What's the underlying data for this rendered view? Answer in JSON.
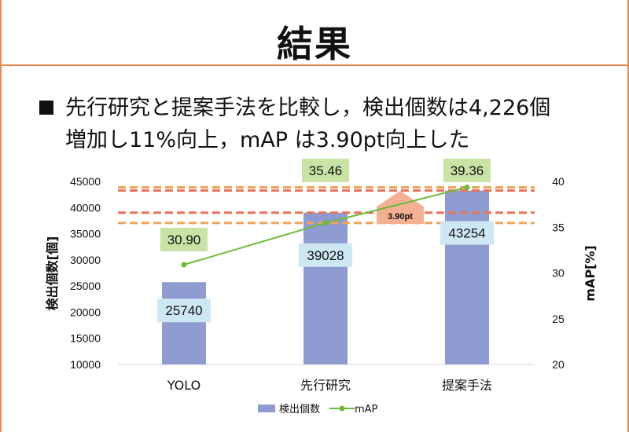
{
  "slide": {
    "title": "結果",
    "bullet_line1": "先行研究と提案手法を比較し，検出個数は4,226個",
    "bullet_line2": "増加し11%向上，mAP は3.90pt向上した"
  },
  "chart_data": {
    "type": "bar",
    "categories": [
      "YOLO",
      "先行研究",
      "提案手法"
    ],
    "series": [
      {
        "name": "検出個数",
        "kind": "bar",
        "axis": "left",
        "values": [
          25740,
          39028,
          43254
        ],
        "color": "#8e9bd0"
      },
      {
        "name": "mAP",
        "kind": "line",
        "axis": "right",
        "values": [
          30.9,
          35.46,
          39.36
        ],
        "color": "#6dbb3a"
      }
    ],
    "bar_labels": [
      "25740",
      "39028",
      "43254"
    ],
    "line_labels": [
      "30.90",
      "35.46",
      "39.36"
    ],
    "ylabel": "検出個数[個]",
    "ylabel_right": "mAP[%]",
    "ylim": [
      10000,
      45000
    ],
    "yticks": [
      "10000",
      "15000",
      "20000",
      "25000",
      "30000",
      "35000",
      "40000",
      "45000"
    ],
    "ylim_right": [
      20,
      40
    ],
    "yticks_right": [
      "20",
      "25",
      "30",
      "35",
      "40"
    ],
    "reference_lines": [
      {
        "axis": "left",
        "value": 43254,
        "color": "#e8735a"
      },
      {
        "axis": "left",
        "value": 39028,
        "color": "#e8735a"
      },
      {
        "axis": "right",
        "value": 39.36,
        "color": "#f0a35a"
      },
      {
        "axis": "right",
        "value": 35.46,
        "color": "#f0a35a"
      }
    ],
    "annotation": "3.90pt",
    "legend_position": "bottom-center",
    "grid": false,
    "colors": {
      "bar_label_box": "#cde7f3",
      "line_label_box": "#c8e3a4",
      "callout": "#f3b093",
      "accent": "#e38a55"
    }
  }
}
